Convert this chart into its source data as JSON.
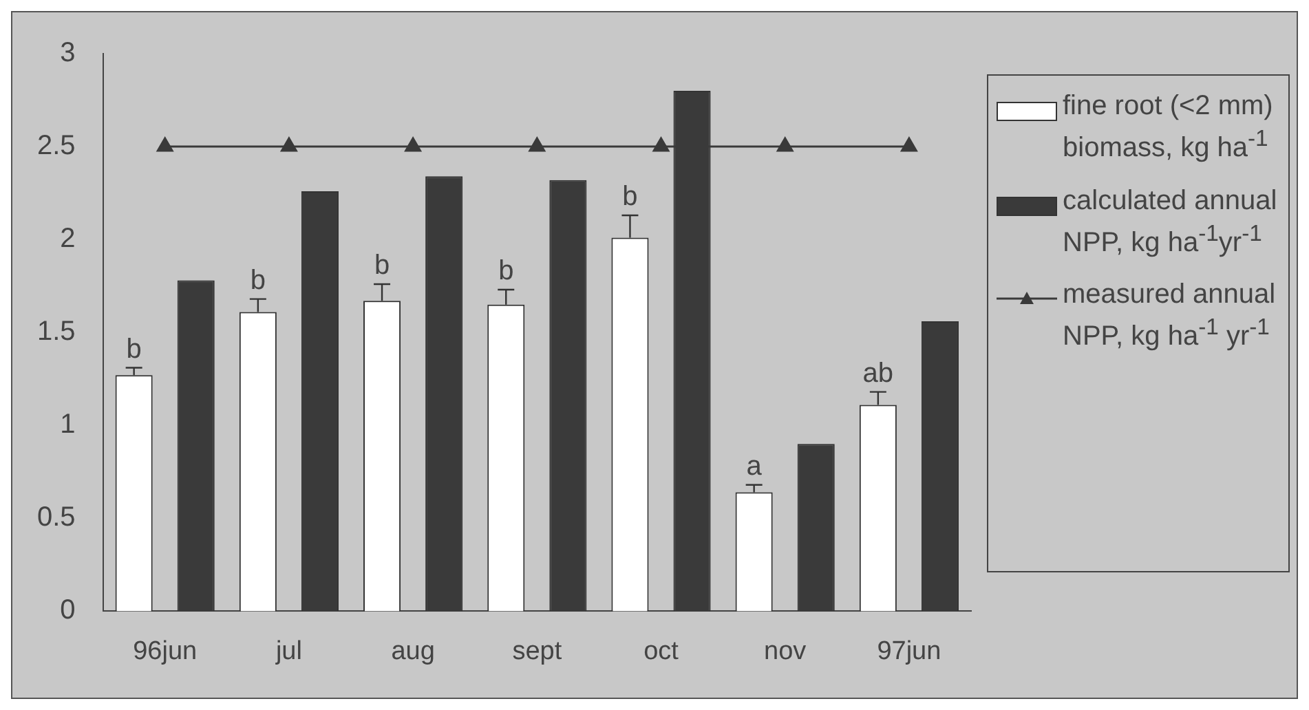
{
  "chart_data": {
    "type": "bar",
    "categories": [
      "96jun",
      "jul",
      "aug",
      "sept",
      "oct",
      "nov",
      "97jun"
    ],
    "series": [
      {
        "name": "fine root (<2 mm) biomass, kg ha$^{-1}$",
        "color": "#ffffff",
        "values": [
          1.27,
          1.61,
          1.67,
          1.65,
          2.01,
          0.64,
          1.11
        ],
        "errors": [
          [
            1.27,
            1.31
          ],
          [
            1.61,
            1.68
          ],
          [
            1.67,
            1.76
          ],
          [
            1.65,
            1.73
          ],
          [
            2.01,
            2.13
          ],
          [
            0.64,
            0.68
          ],
          [
            1.11,
            1.18
          ]
        ]
      },
      {
        "name": "calculated annual NPP, kg ha$^{-1}$yr$^{-1}$",
        "color": "#3a3a3a",
        "values": [
          1.78,
          2.26,
          2.34,
          2.32,
          2.8,
          0.9,
          1.56
        ]
      },
      {
        "name": "measured annual NPP, kg ha$^{-1}$ yr$^{-1}$",
        "type": "line",
        "color": "#3a3a3a",
        "marker": "triangle",
        "values": [
          2.5,
          2.5,
          2.5,
          2.5,
          2.5,
          2.5,
          2.5
        ]
      }
    ],
    "annotations": [
      "b",
      "b",
      "b",
      "b",
      "b",
      "a",
      "ab"
    ],
    "ylim": [
      0,
      3
    ],
    "yticks": [
      0,
      0.5,
      1,
      1.5,
      2,
      2.5,
      3
    ],
    "grid": false,
    "legend": "right"
  }
}
